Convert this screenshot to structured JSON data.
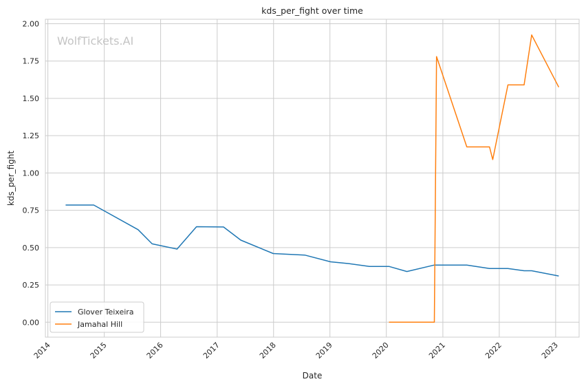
{
  "chart_data": {
    "type": "line",
    "title": "kds_per_fight over time",
    "xlabel": "Date",
    "ylabel": "kds_per_fight",
    "watermark": "WolfTickets.AI",
    "xlim": [
      "2013-12-16",
      "2023-06-02"
    ],
    "ylim": [
      -0.1,
      2.03
    ],
    "x_ticks": [
      {
        "label": "2014",
        "date": "2014-01-01"
      },
      {
        "label": "2015",
        "date": "2015-01-01"
      },
      {
        "label": "2016",
        "date": "2016-01-01"
      },
      {
        "label": "2017",
        "date": "2017-01-01"
      },
      {
        "label": "2018",
        "date": "2018-01-01"
      },
      {
        "label": "2019",
        "date": "2019-01-01"
      },
      {
        "label": "2020",
        "date": "2020-01-01"
      },
      {
        "label": "2021",
        "date": "2021-01-01"
      },
      {
        "label": "2022",
        "date": "2022-01-01"
      },
      {
        "label": "2023",
        "date": "2023-01-01"
      }
    ],
    "y_ticks": [
      {
        "label": "0.00",
        "value": 0.0
      },
      {
        "label": "0.25",
        "value": 0.25
      },
      {
        "label": "0.50",
        "value": 0.5
      },
      {
        "label": "0.75",
        "value": 0.75
      },
      {
        "label": "1.00",
        "value": 1.0
      },
      {
        "label": "1.25",
        "value": 1.25
      },
      {
        "label": "1.50",
        "value": 1.5
      },
      {
        "label": "1.75",
        "value": 1.75
      },
      {
        "label": "2.00",
        "value": 2.0
      }
    ],
    "grid": true,
    "legend_position": "lower-left",
    "series": [
      {
        "name": "Glover Teixeira",
        "color": "#1f77b4",
        "points": [
          [
            "2014-04-26",
            0.785
          ],
          [
            "2014-10-25",
            0.785
          ],
          [
            "2015-08-08",
            0.62
          ],
          [
            "2015-11-07",
            0.525
          ],
          [
            "2016-04-16",
            0.49
          ],
          [
            "2016-08-20",
            0.64
          ],
          [
            "2017-02-11",
            0.638
          ],
          [
            "2017-06-03",
            0.55
          ],
          [
            "2017-12-30",
            0.46
          ],
          [
            "2018-07-22",
            0.45
          ],
          [
            "2019-01-05",
            0.405
          ],
          [
            "2019-05-04",
            0.393
          ],
          [
            "2019-09-14",
            0.374
          ],
          [
            "2020-01-18",
            0.374
          ],
          [
            "2020-05-13",
            0.34
          ],
          [
            "2020-11-07",
            0.383
          ],
          [
            "2021-06-05",
            0.383
          ],
          [
            "2021-10-30",
            0.36
          ],
          [
            "2022-02-26",
            0.36
          ],
          [
            "2022-06-11",
            0.345
          ],
          [
            "2022-07-30",
            0.345
          ],
          [
            "2023-01-21",
            0.31
          ]
        ]
      },
      {
        "name": "Jamahal Hill",
        "color": "#ff7f0e",
        "points": [
          [
            "2020-01-18",
            0.0
          ],
          [
            "2020-11-07",
            0.0
          ],
          [
            "2020-11-21",
            1.78
          ],
          [
            "2021-06-05",
            1.175
          ],
          [
            "2021-10-30",
            1.175
          ],
          [
            "2021-11-20",
            1.09
          ],
          [
            "2022-02-26",
            1.59
          ],
          [
            "2022-06-11",
            1.59
          ],
          [
            "2022-07-30",
            1.925
          ],
          [
            "2023-01-21",
            1.575
          ]
        ]
      }
    ]
  }
}
